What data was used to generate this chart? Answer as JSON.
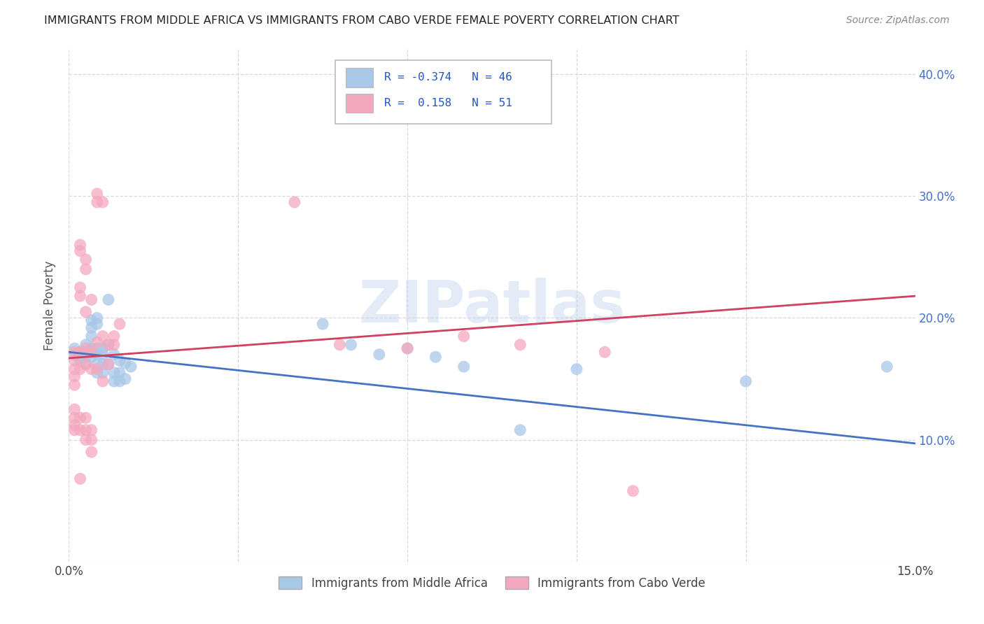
{
  "title": "IMMIGRANTS FROM MIDDLE AFRICA VS IMMIGRANTS FROM CABO VERDE FEMALE POVERTY CORRELATION CHART",
  "source": "Source: ZipAtlas.com",
  "ylabel": "Female Poverty",
  "xlim": [
    0.0,
    0.15
  ],
  "ylim": [
    0.0,
    0.42
  ],
  "r_blue": -0.374,
  "n_blue": 46,
  "r_pink": 0.158,
  "n_pink": 51,
  "legend_label_blue": "Immigrants from Middle Africa",
  "legend_label_pink": "Immigrants from Cabo Verde",
  "blue_color": "#a8c8e8",
  "pink_color": "#f4a8be",
  "line_blue_color": "#4472c4",
  "line_pink_color": "#d04060",
  "blue_scatter": [
    [
      0.001,
      0.175
    ],
    [
      0.001,
      0.17
    ],
    [
      0.002,
      0.172
    ],
    [
      0.002,
      0.168
    ],
    [
      0.002,
      0.165
    ],
    [
      0.003,
      0.178
    ],
    [
      0.003,
      0.172
    ],
    [
      0.003,
      0.168
    ],
    [
      0.003,
      0.162
    ],
    [
      0.004,
      0.198
    ],
    [
      0.004,
      0.192
    ],
    [
      0.004,
      0.185
    ],
    [
      0.004,
      0.175
    ],
    [
      0.004,
      0.168
    ],
    [
      0.005,
      0.2
    ],
    [
      0.005,
      0.195
    ],
    [
      0.005,
      0.175
    ],
    [
      0.005,
      0.17
    ],
    [
      0.005,
      0.162
    ],
    [
      0.005,
      0.155
    ],
    [
      0.006,
      0.175
    ],
    [
      0.006,
      0.17
    ],
    [
      0.006,
      0.162
    ],
    [
      0.006,
      0.155
    ],
    [
      0.007,
      0.215
    ],
    [
      0.007,
      0.178
    ],
    [
      0.007,
      0.162
    ],
    [
      0.008,
      0.17
    ],
    [
      0.008,
      0.155
    ],
    [
      0.008,
      0.148
    ],
    [
      0.009,
      0.165
    ],
    [
      0.009,
      0.155
    ],
    [
      0.009,
      0.148
    ],
    [
      0.01,
      0.163
    ],
    [
      0.01,
      0.15
    ],
    [
      0.011,
      0.16
    ],
    [
      0.045,
      0.195
    ],
    [
      0.05,
      0.178
    ],
    [
      0.055,
      0.17
    ],
    [
      0.06,
      0.175
    ],
    [
      0.065,
      0.168
    ],
    [
      0.07,
      0.16
    ],
    [
      0.08,
      0.108
    ],
    [
      0.09,
      0.158
    ],
    [
      0.12,
      0.148
    ],
    [
      0.145,
      0.16
    ]
  ],
  "pink_scatter": [
    [
      0.001,
      0.172
    ],
    [
      0.001,
      0.165
    ],
    [
      0.001,
      0.158
    ],
    [
      0.001,
      0.152
    ],
    [
      0.001,
      0.145
    ],
    [
      0.001,
      0.125
    ],
    [
      0.001,
      0.118
    ],
    [
      0.001,
      0.112
    ],
    [
      0.001,
      0.108
    ],
    [
      0.002,
      0.26
    ],
    [
      0.002,
      0.255
    ],
    [
      0.002,
      0.225
    ],
    [
      0.002,
      0.218
    ],
    [
      0.002,
      0.172
    ],
    [
      0.002,
      0.158
    ],
    [
      0.002,
      0.118
    ],
    [
      0.002,
      0.108
    ],
    [
      0.002,
      0.068
    ],
    [
      0.003,
      0.248
    ],
    [
      0.003,
      0.24
    ],
    [
      0.003,
      0.205
    ],
    [
      0.003,
      0.175
    ],
    [
      0.003,
      0.162
    ],
    [
      0.003,
      0.118
    ],
    [
      0.003,
      0.108
    ],
    [
      0.003,
      0.1
    ],
    [
      0.004,
      0.215
    ],
    [
      0.004,
      0.172
    ],
    [
      0.004,
      0.158
    ],
    [
      0.004,
      0.108
    ],
    [
      0.004,
      0.1
    ],
    [
      0.004,
      0.09
    ],
    [
      0.005,
      0.302
    ],
    [
      0.005,
      0.295
    ],
    [
      0.005,
      0.18
    ],
    [
      0.005,
      0.158
    ],
    [
      0.006,
      0.295
    ],
    [
      0.006,
      0.185
    ],
    [
      0.006,
      0.148
    ],
    [
      0.007,
      0.178
    ],
    [
      0.007,
      0.162
    ],
    [
      0.008,
      0.185
    ],
    [
      0.008,
      0.178
    ],
    [
      0.009,
      0.195
    ],
    [
      0.04,
      0.295
    ],
    [
      0.048,
      0.178
    ],
    [
      0.06,
      0.175
    ],
    [
      0.07,
      0.185
    ],
    [
      0.08,
      0.178
    ],
    [
      0.095,
      0.172
    ],
    [
      0.1,
      0.058
    ]
  ],
  "background_color": "#ffffff",
  "grid_color": "#d8d8d8",
  "title_color": "#222222",
  "watermark": "ZIPatlas"
}
